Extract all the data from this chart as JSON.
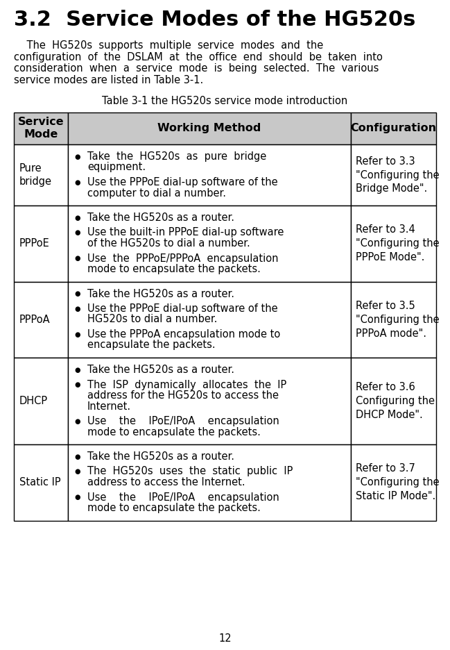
{
  "title": "3.2  Service Modes of the HG520s",
  "para_lines": [
    "    The  HG520s  supports  multiple  service  modes  and  the",
    "configuration  of  the  DSLAM  at  the  office  end  should  be  taken  into",
    "consideration  when  a  service  mode  is  being  selected.  The  various",
    "service modes are listed in Table 3-1."
  ],
  "table_caption": "Table 3-1 the HG520s service mode introduction",
  "header": [
    "Service\nMode",
    "Working Method",
    "Configuration"
  ],
  "rows": [
    {
      "mode": "Pure\nbridge",
      "working": [
        [
          "Take  the  HG520s  as  pure  bridge",
          "equipment."
        ],
        [
          "Use the PPPoE dial-up software of the",
          "computer to dial a number."
        ]
      ],
      "config": "Refer to 3.3\n\"Configuring the\nBridge Mode\"."
    },
    {
      "mode": "PPPoE",
      "working": [
        [
          "Take the HG520s as a router."
        ],
        [
          "Use the built-in PPPoE dial-up software",
          "of the HG520s to dial a number."
        ],
        [
          "Use  the  PPPoE/PPPoA  encapsulation",
          "mode to encapsulate the packets."
        ]
      ],
      "config": "Refer to 3.4\n\"Configuring the\nPPPoE Mode\"."
    },
    {
      "mode": "PPPoA",
      "working": [
        [
          "Take the HG520s as a router."
        ],
        [
          "Use the PPPoE dial-up software of the",
          "HG520s to dial a number."
        ],
        [
          "Use the PPPoA encapsulation mode to",
          "encapsulate the packets."
        ]
      ],
      "config": "Refer to 3.5\n\"Configuring the\nPPPoA mode\"."
    },
    {
      "mode": "DHCP",
      "working": [
        [
          "Take the HG520s as a router."
        ],
        [
          "The  ISP  dynamically  allocates  the  IP",
          "address for the HG520s to access the",
          "Internet."
        ],
        [
          "Use    the    IPoE/IPoA    encapsulation",
          "mode to encapsulate the packets."
        ]
      ],
      "config": "Refer to 3.6\nConfiguring the\nDHCP Mode\"."
    },
    {
      "mode": "Static IP",
      "working": [
        [
          "Take the HG520s as a router."
        ],
        [
          "The  HG520s  uses  the  static  public  IP",
          "address to access the Internet."
        ],
        [
          "Use    the    IPoE/IPoA    encapsulation",
          "mode to encapsulate the packets."
        ]
      ],
      "config": "Refer to 3.7\n\"Configuring the\nStatic IP Mode\"."
    }
  ],
  "page_number": "12",
  "bg_color": "#ffffff",
  "header_bg": "#c8c8c8",
  "border_color": "#000000",
  "title_fontsize": 22,
  "body_fontsize": 10.5,
  "header_fontsize": 11.5,
  "para_fontsize": 10.5
}
